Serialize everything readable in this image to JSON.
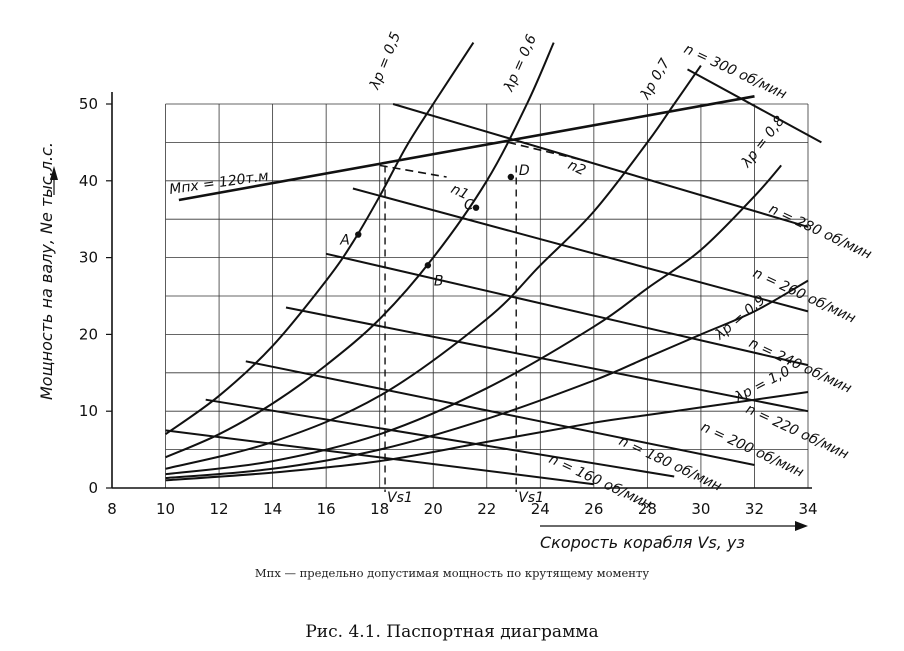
{
  "chart_data": {
    "type": "line",
    "xlabel": "Скорость корабля Vs, уз",
    "ylabel": "Мощность на валу, Ne тыс.л.с.",
    "xlim": [
      8,
      34
    ],
    "ylim": [
      0,
      50
    ],
    "x_ticks": [
      "8",
      "10",
      "12",
      "14",
      "16",
      "18",
      "20",
      "22",
      "24",
      "26",
      "28",
      "30",
      "32",
      "34"
    ],
    "y_ticks": [
      "0",
      "10",
      "20",
      "30",
      "40",
      "50"
    ],
    "grid": true,
    "colors": {
      "ink": "#111111",
      "grid": "#333333"
    },
    "lambda_curves": [
      {
        "name": "λp = 0,5",
        "points": [
          [
            10,
            7
          ],
          [
            12,
            12
          ],
          [
            14,
            18.5
          ],
          [
            16,
            27
          ],
          [
            17,
            32
          ],
          [
            18,
            38
          ],
          [
            19,
            44.5
          ],
          [
            20,
            50
          ],
          [
            21.5,
            58
          ]
        ]
      },
      {
        "name": "λp = 0,6",
        "points": [
          [
            10,
            4
          ],
          [
            12,
            7
          ],
          [
            14,
            11
          ],
          [
            16,
            16
          ],
          [
            18,
            22
          ],
          [
            20,
            30
          ],
          [
            22,
            40
          ],
          [
            23.5,
            50
          ],
          [
            24.5,
            58
          ]
        ]
      },
      {
        "name": "λp 0,7",
        "points": [
          [
            10,
            2.5
          ],
          [
            14,
            6
          ],
          [
            18,
            12
          ],
          [
            22,
            22
          ],
          [
            24,
            29
          ],
          [
            26,
            36
          ],
          [
            28,
            45
          ],
          [
            29,
            50
          ],
          [
            30,
            55
          ]
        ]
      },
      {
        "name": "λp = 0,8",
        "points": [
          [
            10,
            1.8
          ],
          [
            14,
            3.5
          ],
          [
            18,
            7
          ],
          [
            22,
            13
          ],
          [
            26,
            21
          ],
          [
            28,
            26
          ],
          [
            30,
            31
          ],
          [
            32,
            38
          ],
          [
            33,
            42
          ]
        ]
      },
      {
        "name": "λp = 0,9",
        "points": [
          [
            10,
            1.3
          ],
          [
            14,
            2.5
          ],
          [
            18,
            5
          ],
          [
            22,
            9
          ],
          [
            26,
            14
          ],
          [
            28,
            17
          ],
          [
            30,
            20
          ],
          [
            32,
            23
          ],
          [
            34,
            27
          ]
        ]
      },
      {
        "name": "λp = 1,0",
        "points": [
          [
            10,
            1
          ],
          [
            14,
            2
          ],
          [
            18,
            3.5
          ],
          [
            22,
            6
          ],
          [
            26,
            8.5
          ],
          [
            28,
            9.5
          ],
          [
            30,
            10.5
          ],
          [
            32,
            11.5
          ],
          [
            34,
            12.5
          ]
        ]
      }
    ],
    "rpm_lines": [
      {
        "name": "n = 300 об/мин",
        "points": [
          [
            29.5,
            54.5
          ],
          [
            34.5,
            45
          ]
        ]
      },
      {
        "name": "n = 280 об/мин",
        "points": [
          [
            18.5,
            50
          ],
          [
            34,
            34
          ]
        ]
      },
      {
        "name": "n = 260 об/мин",
        "points": [
          [
            17,
            39
          ],
          [
            34,
            23
          ]
        ]
      },
      {
        "name": "n = 240 об/мин",
        "points": [
          [
            16,
            30.5
          ],
          [
            34,
            16
          ]
        ]
      },
      {
        "name": "n = 220 об/мин",
        "points": [
          [
            14.5,
            23.5
          ],
          [
            34,
            10
          ]
        ]
      },
      {
        "name": "n = 200 об/мин",
        "points": [
          [
            13,
            16.5
          ],
          [
            32,
            3
          ]
        ]
      },
      {
        "name": "n = 180 об/мин",
        "points": [
          [
            11.5,
            11.5
          ],
          [
            29,
            1.5
          ]
        ]
      },
      {
        "name": "n = 160 об/мин",
        "points": [
          [
            10,
            7.5
          ],
          [
            26,
            0.5
          ]
        ]
      }
    ],
    "torque_limit": {
      "name": "Mпх = 120т.м",
      "points": [
        [
          10.5,
          37.5
        ],
        [
          32,
          51
        ]
      ]
    },
    "operating_points": [
      {
        "name": "A",
        "x": 17.2,
        "y": 33
      },
      {
        "name": "B",
        "x": 19.8,
        "y": 29
      },
      {
        "name": "C",
        "x": 21.6,
        "y": 36.5
      },
      {
        "name": "D",
        "x": 22.9,
        "y": 40.5
      }
    ],
    "dashed_lines": [
      {
        "name": "n1",
        "points": [
          [
            18,
            42
          ],
          [
            20.5,
            40.5
          ]
        ]
      },
      {
        "name": "n2",
        "points": [
          [
            22.8,
            45
          ],
          [
            25.8,
            42.5
          ]
        ]
      }
    ],
    "vs_markers": [
      {
        "name": "Vs1",
        "x": 18.2
      },
      {
        "name": "Vs1",
        "x": 23.1
      }
    ]
  },
  "footnote": "Mпх — предельно допустимая мощность по крутящему моменту",
  "caption": "Рис. 4.1. Паспортная диаграмма"
}
